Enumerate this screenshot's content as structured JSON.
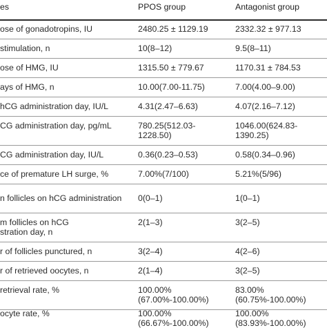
{
  "header": [
    "es",
    "PPOS group",
    "Antagonist group"
  ],
  "rows": [
    {
      "label": [
        "ose of gonadotropins, IU"
      ],
      "ppos": [
        "2480.25 ± 1129.19"
      ],
      "antagonist": [
        "2332.32 ± 977.13"
      ]
    },
    {
      "label": [
        "stimulation, n"
      ],
      "ppos": [
        "10(8–12)"
      ],
      "antagonist": [
        "9.5(8–11)"
      ]
    },
    {
      "label": [
        "ose of HMG, IU"
      ],
      "ppos": [
        "1315.50 ± 779.67"
      ],
      "antagonist": [
        "1170.31 ± 784.53"
      ]
    },
    {
      "label": [
        "ays of HMG, n"
      ],
      "ppos": [
        "10.00(7.00-11.75)"
      ],
      "antagonist": [
        "7.00(4.00–9.00)"
      ]
    },
    {
      "label": [
        "hCG administration day, IU/L"
      ],
      "ppos": [
        "4.31(2.47–6.63)"
      ],
      "antagonist": [
        "4.07(2.16–7.12)"
      ]
    },
    {
      "label": [
        "CG administration day, pg/mL"
      ],
      "ppos": [
        "780.25(512.03-",
        "1228.50)"
      ],
      "antagonist": [
        "1046.00(624.83-",
        "1390.25)"
      ]
    },
    {
      "label": [
        "CG administration day, IU/L"
      ],
      "ppos": [
        "0.36(0.23–0.53)"
      ],
      "antagonist": [
        "0.58(0.34–0.96)"
      ]
    },
    {
      "label": [
        "ce of premature LH surge, %"
      ],
      "ppos": [
        "7.00%(7/100)"
      ],
      "antagonist": [
        "5.21%(5/96)"
      ]
    },
    {
      "label": [
        "n follicles on hCG administration"
      ],
      "ppos": [
        "0(0–1)"
      ],
      "antagonist": [
        "1(0–1)"
      ]
    },
    {
      "label": [
        "m follicles on hCG",
        "stration day, n"
      ],
      "ppos": [
        "2(1–3)"
      ],
      "antagonist": [
        "3(2–5)"
      ]
    },
    {
      "label": [
        "r of follicles punctured, n"
      ],
      "ppos": [
        "3(2–4)"
      ],
      "antagonist": [
        "4(2–6)"
      ]
    },
    {
      "label": [
        "r of retrieved oocytes, n"
      ],
      "ppos": [
        "2(1–4)"
      ],
      "antagonist": [
        "3(2–5)"
      ]
    },
    {
      "label": [
        "retrieval rate, %"
      ],
      "ppos": [
        "100.00%",
        "(67.00%-100.00%)"
      ],
      "antagonist": [
        "83.00%",
        "(60.75%-100.00%)"
      ]
    },
    {
      "label": [
        "ocyte rate, %"
      ],
      "ppos": [
        "100.00%",
        "(66.67%-100.00%)"
      ],
      "antagonist": [
        "100.00%",
        "(83.93%-100.00%)"
      ]
    }
  ]
}
